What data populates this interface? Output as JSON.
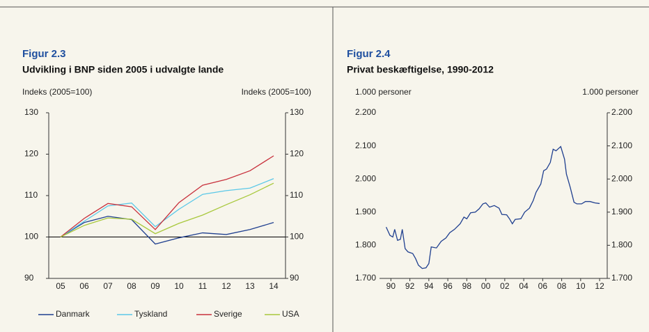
{
  "chart_data": [
    {
      "type": "line",
      "label": "Figur 2.3",
      "title": "Udvikling i BNP siden 2005 i udvalgte lande",
      "ylabel": "Indeks (2005=100)",
      "y2label": "Indeks (2005=100)",
      "categories": [
        "05",
        "06",
        "07",
        "08",
        "09",
        "10",
        "11",
        "12",
        "13",
        "14"
      ],
      "series": [
        {
          "name": "Danmark",
          "color": "#1f3f8f",
          "values": [
            100,
            103.5,
            105,
            104.2,
            98.3,
            99.8,
            101,
            100.6,
            101.8,
            103.5
          ]
        },
        {
          "name": "Tyskland",
          "color": "#5bc8e8",
          "values": [
            100,
            103.8,
            107.5,
            108.2,
            102.5,
            106.7,
            110.3,
            111.2,
            111.8,
            114.1
          ]
        },
        {
          "name": "Sverige",
          "color": "#c8303c",
          "values": [
            100,
            104.5,
            108.1,
            107.3,
            101.8,
            108.3,
            112.5,
            113.9,
            116,
            119.6
          ]
        },
        {
          "name": "USA",
          "color": "#a8c83c",
          "values": [
            100,
            102.8,
            104.6,
            104.3,
            100.8,
            103.3,
            105.3,
            107.8,
            110.2,
            113
          ]
        }
      ],
      "ylim": [
        90,
        130
      ],
      "yticks": [
        90,
        100,
        110,
        120,
        130
      ],
      "y2lim": [
        90,
        130
      ],
      "y2ticks": [
        90,
        100,
        110,
        120,
        130
      ],
      "reference_line": 100,
      "legend": "bottom"
    },
    {
      "type": "line",
      "label": "Figur 2.4",
      "title": "Privat beskæftigelse, 1990-2012",
      "ylabel": "1.000 personer",
      "y2label": "1.000 personer",
      "x": [
        1989.5,
        1989.9,
        1990.2,
        1990.4,
        1990.7,
        1991,
        1991.2,
        1991.5,
        1991.8,
        1992.3,
        1992.6,
        1992.9,
        1993.3,
        1993.7,
        1994,
        1994.25,
        1994.8,
        1995.3,
        1995.8,
        1996.2,
        1996.7,
        1997.3,
        1997.7,
        1998,
        1998.4,
        1998.9,
        1999.3,
        1999.7,
        2000,
        2000.4,
        2000.9,
        2001.4,
        2001.7,
        2002.2,
        2002.5,
        2002.8,
        2003.1,
        2003.7,
        2004.1,
        2004.6,
        2005,
        2005.3,
        2005.8,
        2006.1,
        2006.4,
        2006.8,
        2007.1,
        2007.4,
        2007.9,
        2008.3,
        2008.5,
        2008.9,
        2009.3,
        2009.6,
        2010.1,
        2010.5,
        2011,
        2011.5,
        2012
      ],
      "series": [
        {
          "name": "Privat beskæftigelse",
          "color": "#1f3f8f",
          "values": [
            1855,
            1830,
            1825,
            1848,
            1815,
            1818,
            1848,
            1790,
            1780,
            1775,
            1760,
            1740,
            1730,
            1732,
            1745,
            1795,
            1792,
            1812,
            1822,
            1838,
            1848,
            1865,
            1885,
            1880,
            1898,
            1900,
            1910,
            1925,
            1928,
            1915,
            1920,
            1912,
            1893,
            1892,
            1880,
            1865,
            1878,
            1880,
            1900,
            1912,
            1935,
            1960,
            1985,
            2025,
            2030,
            2050,
            2090,
            2085,
            2098,
            2060,
            2015,
            1975,
            1930,
            1925,
            1925,
            1932,
            1932,
            1928,
            1926
          ]
        }
      ],
      "xlim": [
        1988.8,
        2012.8
      ],
      "xticks": [
        {
          "value": 1990,
          "label": "90"
        },
        {
          "value": 1992,
          "label": "92"
        },
        {
          "value": 1994,
          "label": "94"
        },
        {
          "value": 1996,
          "label": "96"
        },
        {
          "value": 1998,
          "label": "98"
        },
        {
          "value": 2000,
          "label": "00"
        },
        {
          "value": 2002,
          "label": "02"
        },
        {
          "value": 2004,
          "label": "04"
        },
        {
          "value": 2006,
          "label": "06"
        },
        {
          "value": 2008,
          "label": "08"
        },
        {
          "value": 2010,
          "label": "10"
        },
        {
          "value": 2012,
          "label": "12"
        }
      ],
      "ylim": [
        1700,
        2200
      ],
      "yticks": [
        {
          "value": 1700,
          "label": "1.700"
        },
        {
          "value": 1800,
          "label": "1.800"
        },
        {
          "value": 1900,
          "label": "1.900"
        },
        {
          "value": 2000,
          "label": "2.000"
        },
        {
          "value": 2100,
          "label": "2.100"
        },
        {
          "value": 2200,
          "label": "2.200"
        }
      ],
      "y2lim": [
        1700,
        2200
      ],
      "y2ticks": [
        {
          "value": 1700,
          "label": "1.700"
        },
        {
          "value": 1800,
          "label": "1.800"
        },
        {
          "value": 1900,
          "label": "1.900"
        },
        {
          "value": 2000,
          "label": "2.000"
        },
        {
          "value": 2100,
          "label": "2.100"
        },
        {
          "value": 2200,
          "label": "2.200"
        }
      ]
    }
  ]
}
